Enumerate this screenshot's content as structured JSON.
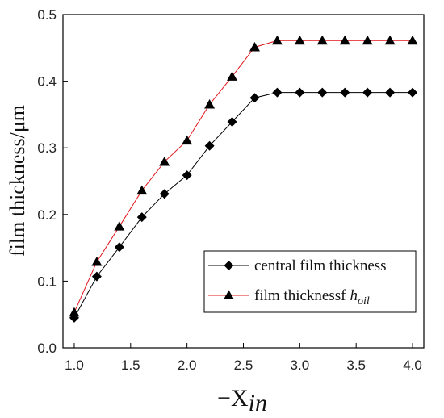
{
  "chart_data": {
    "type": "line",
    "xlabel": {
      "main": "−X",
      "sub": "in"
    },
    "ylabel": "film thickness/μm",
    "xlim": [
      0.9,
      4.1
    ],
    "ylim": [
      0.0,
      0.5
    ],
    "xticks": [
      "1.0",
      "1.5",
      "2.0",
      "2.5",
      "3.0",
      "3.5",
      "4.0"
    ],
    "yticks": [
      "0.0",
      "0.1",
      "0.2",
      "0.3",
      "0.4",
      "0.5"
    ],
    "grid": false,
    "legend_position": "lower-right",
    "x": [
      1.0,
      1.2,
      1.4,
      1.6,
      1.8,
      2.0,
      2.2,
      2.4,
      2.6,
      2.8,
      3.0,
      3.2,
      3.4,
      3.6,
      3.8,
      4.0
    ],
    "series": [
      {
        "name": "central film thickness",
        "marker": "diamond",
        "color": "#000000",
        "values": [
          0.045,
          0.107,
          0.151,
          0.196,
          0.231,
          0.259,
          0.303,
          0.339,
          0.375,
          0.383,
          0.383,
          0.383,
          0.383,
          0.383,
          0.383,
          0.383
        ]
      },
      {
        "name": "film thicknessf",
        "name_italic": "h",
        "name_sub": "oil",
        "marker": "triangle",
        "color": "#e0151b",
        "marker_color": "#000000",
        "values": [
          0.053,
          0.129,
          0.182,
          0.236,
          0.279,
          0.311,
          0.365,
          0.407,
          0.451,
          0.461,
          0.461,
          0.461,
          0.461,
          0.461,
          0.461,
          0.461
        ]
      }
    ]
  }
}
